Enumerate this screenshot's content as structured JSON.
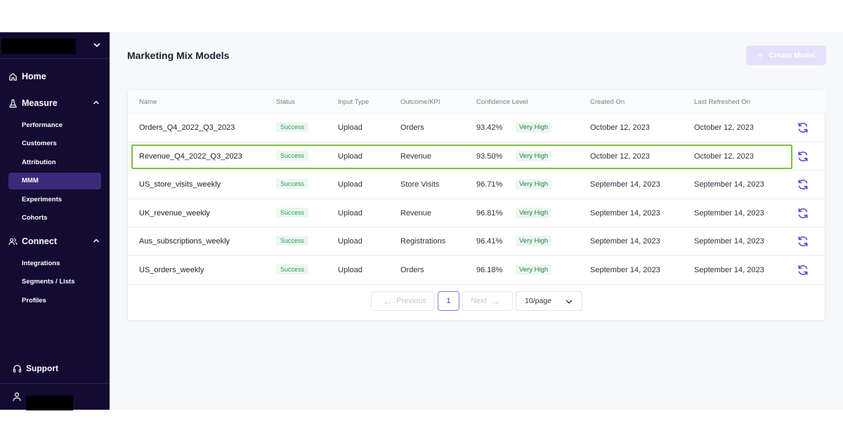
{
  "sidebar": {
    "home": "Home",
    "measure": {
      "label": "Measure",
      "items": [
        "Performance",
        "Customers",
        "Attribution",
        "MMM",
        "Experiments",
        "Cohorts"
      ],
      "active": "MMM"
    },
    "connect": {
      "label": "Connect",
      "items": [
        "Integrations",
        "Segments / Lists",
        "Profiles"
      ]
    },
    "support": "Support"
  },
  "page": {
    "title": "Marketing Mix Models",
    "create_button": "Create Model"
  },
  "table": {
    "columns": [
      "Name",
      "Status",
      "Input Type",
      "Outcome/KPI",
      "Confidence Level",
      "Created On",
      "Last Refreshed On"
    ],
    "rows": [
      {
        "name": "Orders_Q4_2022_Q3_2023",
        "status": "Success",
        "input_type": "Upload",
        "outcome": "Orders",
        "confidence": "93.42%",
        "confidence_label": "Very High",
        "created": "October 12, 2023",
        "refreshed": "October 12, 2023"
      },
      {
        "name": "Revenue_Q4_2022_Q3_2023",
        "status": "Success",
        "input_type": "Upload",
        "outcome": "Revenue",
        "confidence": "93.50%",
        "confidence_label": "Very High",
        "created": "October 12, 2023",
        "refreshed": "October 12, 2023"
      },
      {
        "name": "US_store_visits_weekly",
        "status": "Success",
        "input_type": "Upload",
        "outcome": "Store Visits",
        "confidence": "96.71%",
        "confidence_label": "Very High",
        "created": "September 14, 2023",
        "refreshed": "September 14, 2023"
      },
      {
        "name": "UK_revenue_weekly",
        "status": "Success",
        "input_type": "Upload",
        "outcome": "Revenue",
        "confidence": "96.81%",
        "confidence_label": "Very High",
        "created": "September 14, 2023",
        "refreshed": "September 14, 2023"
      },
      {
        "name": "Aus_subscriptions_weekly",
        "status": "Success",
        "input_type": "Upload",
        "outcome": "Registrations",
        "confidence": "96.41%",
        "confidence_label": "Very High",
        "created": "September 14, 2023",
        "refreshed": "September 14, 2023"
      },
      {
        "name": "US_orders_weekly",
        "status": "Success",
        "input_type": "Upload",
        "outcome": "Orders",
        "confidence": "96.18%",
        "confidence_label": "Very High",
        "created": "September 14, 2023",
        "refreshed": "September 14, 2023"
      }
    ],
    "highlighted_row": 1
  },
  "pagination": {
    "previous": "Previous",
    "current_page": "1",
    "next": "Next",
    "page_size": "10/page"
  },
  "colors": {
    "sidebar_bg": "#140b33",
    "active_nav": "#3a2a7a",
    "accent": "#5b45d6",
    "success_text": "#2f9b57",
    "highlight_border": "#7cc13f"
  }
}
